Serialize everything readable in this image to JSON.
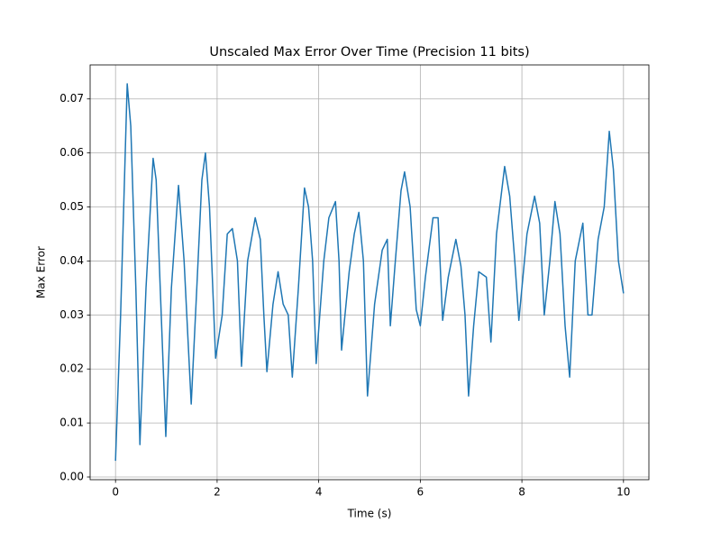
{
  "chart_data": {
    "type": "line",
    "title": "Unscaled Max Error Over Time (Precision 11 bits)",
    "x_label": "Time (s)",
    "y_label": "Max Error",
    "grid": true,
    "xlim": [
      -0.5,
      10.5
    ],
    "ylim": [
      -0.0005,
      0.0763
    ],
    "xticks": [
      0,
      2,
      4,
      6,
      8,
      10
    ],
    "yticks": [
      {
        "value": 0,
        "label": "0.00"
      },
      0.01,
      0.02,
      0.03,
      0.04,
      0.05,
      0.06,
      0.07
    ],
    "series": [
      {
        "name": "Max Error",
        "color": "#1f77b4",
        "x": [
          0,
          0.1,
          0.23,
          0.3,
          0.4,
          0.48,
          0.6,
          0.74,
          0.8,
          0.9,
          0.99,
          1.1,
          1.24,
          1.35,
          1.49,
          1.6,
          1.7,
          1.77,
          1.85,
          1.97,
          2.1,
          2.2,
          2.3,
          2.4,
          2.48,
          2.6,
          2.75,
          2.85,
          2.92,
          2.98,
          3.1,
          3.2,
          3.3,
          3.4,
          3.48,
          3.6,
          3.72,
          3.8,
          3.88,
          3.95,
          4.1,
          4.2,
          4.33,
          4.4,
          4.45,
          4.6,
          4.7,
          4.79,
          4.88,
          4.96,
          5.1,
          5.25,
          5.35,
          5.41,
          5.5,
          5.62,
          5.69,
          5.8,
          5.92,
          6.0,
          6.1,
          6.25,
          6.35,
          6.44,
          6.55,
          6.7,
          6.8,
          6.88,
          6.95,
          7.05,
          7.15,
          7.3,
          7.39,
          7.5,
          7.66,
          7.76,
          7.86,
          7.94,
          8.1,
          8.25,
          8.35,
          8.44,
          8.55,
          8.65,
          8.75,
          8.85,
          8.94,
          9.05,
          9.2,
          9.3,
          9.38,
          9.5,
          9.62,
          9.72,
          9.8,
          9.9,
          10.0
        ],
        "values": [
          0.003,
          0.03,
          0.0728,
          0.065,
          0.035,
          0.006,
          0.035,
          0.059,
          0.055,
          0.03,
          0.0075,
          0.035,
          0.054,
          0.04,
          0.0135,
          0.035,
          0.055,
          0.06,
          0.05,
          0.022,
          0.03,
          0.045,
          0.046,
          0.04,
          0.0205,
          0.04,
          0.048,
          0.044,
          0.03,
          0.0195,
          0.032,
          0.038,
          0.032,
          0.03,
          0.0185,
          0.035,
          0.0535,
          0.05,
          0.04,
          0.021,
          0.04,
          0.048,
          0.051,
          0.04,
          0.0235,
          0.038,
          0.045,
          0.049,
          0.04,
          0.015,
          0.032,
          0.042,
          0.044,
          0.028,
          0.039,
          0.053,
          0.0565,
          0.05,
          0.031,
          0.028,
          0.037,
          0.048,
          0.048,
          0.029,
          0.037,
          0.044,
          0.039,
          0.03,
          0.015,
          0.028,
          0.038,
          0.037,
          0.025,
          0.045,
          0.0575,
          0.052,
          0.04,
          0.029,
          0.045,
          0.052,
          0.047,
          0.03,
          0.04,
          0.051,
          0.045,
          0.028,
          0.0185,
          0.04,
          0.047,
          0.03,
          0.03,
          0.044,
          0.05,
          0.064,
          0.057,
          0.04,
          0.034
        ]
      }
    ]
  }
}
